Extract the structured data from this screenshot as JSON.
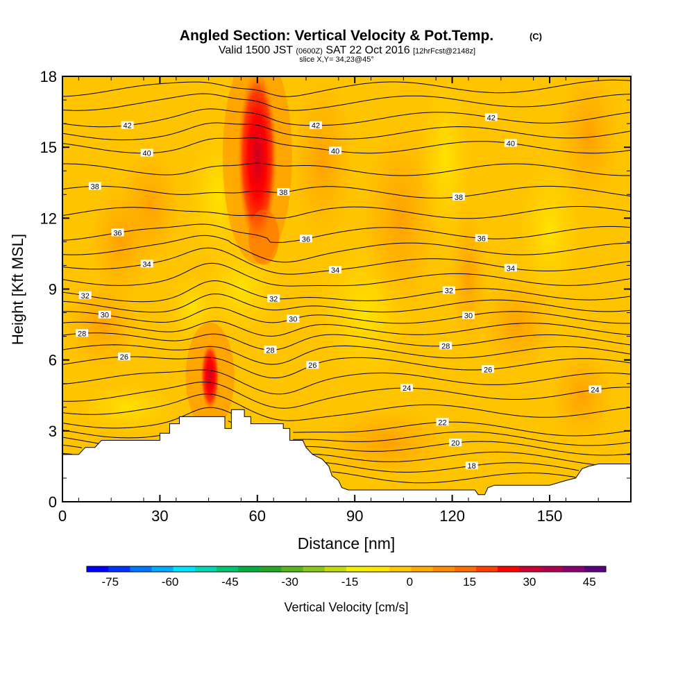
{
  "chart_data": {
    "type": "heatmap",
    "title": "Angled Section: Vertical Velocity & Pot.Temp.",
    "title_unit": "(C)",
    "subtitle_parts": [
      "Valid 1500 JST",
      "(0600Z)",
      "SAT 22 Oct 2016",
      "[12hrFcst@2148z]"
    ],
    "slice_label": "slice X,Y= 34,23@45°",
    "xlabel": "Distance [nm]",
    "ylabel": "Height [Kft MSL]",
    "xlim": [
      0,
      175
    ],
    "ylim": [
      0,
      18
    ],
    "x_ticks": [
      "0",
      "30",
      "60",
      "90",
      "120",
      "150"
    ],
    "y_ticks": [
      "0",
      "3",
      "6",
      "9",
      "12",
      "15",
      "18"
    ],
    "colorbar_label": "Vertical Velocity [cm/s]",
    "colorbar_ticks": [
      "-75",
      "-60",
      "-45",
      "-30",
      "-15",
      "0",
      "15",
      "30",
      "45"
    ],
    "colorbar_range": [
      -80,
      50
    ],
    "colorbar_colors": [
      "#0000ff",
      "#0033ff",
      "#0077ff",
      "#00aaff",
      "#00e5ff",
      "#00d9b0",
      "#00c46e",
      "#00b040",
      "#28a828",
      "#5bb51c",
      "#8cc81a",
      "#c2dc14",
      "#f0f000",
      "#ffe600",
      "#ffc800",
      "#ffaa00",
      "#ff8c00",
      "#ff6e00",
      "#ff4000",
      "#ff0000",
      "#cc0033",
      "#b00050",
      "#8a0070",
      "#5a0080"
    ],
    "terrain": [
      [
        0,
        2
      ],
      [
        5,
        2
      ],
      [
        7,
        2.3
      ],
      [
        10,
        2.3
      ],
      [
        12,
        2.6
      ],
      [
        17,
        2.6
      ],
      [
        20,
        2.6
      ],
      [
        25,
        2.6
      ],
      [
        30,
        2.6
      ],
      [
        30,
        2.9
      ],
      [
        33,
        2.9
      ],
      [
        33,
        3.3
      ],
      [
        36,
        3.3
      ],
      [
        36,
        3.6
      ],
      [
        50,
        3.6
      ],
      [
        50,
        3.1
      ],
      [
        52,
        3.1
      ],
      [
        52,
        3.9
      ],
      [
        56,
        3.9
      ],
      [
        56,
        3.6
      ],
      [
        58,
        3.6
      ],
      [
        58,
        3.3
      ],
      [
        65,
        3.3
      ],
      [
        68,
        3.3
      ],
      [
        68,
        3.1
      ],
      [
        70,
        3.1
      ],
      [
        70,
        2.6
      ],
      [
        74,
        2.6
      ],
      [
        75,
        2.3
      ],
      [
        77,
        2.0
      ],
      [
        80,
        1.8
      ],
      [
        82,
        1.5
      ],
      [
        83,
        1.1
      ],
      [
        85,
        0.9
      ],
      [
        86,
        0.6
      ],
      [
        88,
        0.5
      ],
      [
        92,
        0.5
      ],
      [
        95,
        0.5
      ],
      [
        100,
        0.5
      ],
      [
        110,
        0.5
      ],
      [
        118,
        0.5
      ],
      [
        122,
        0.5
      ],
      [
        127,
        0.5
      ],
      [
        128,
        0.3
      ],
      [
        130,
        0.3
      ],
      [
        131,
        0.6
      ],
      [
        133,
        0.7
      ],
      [
        138,
        0.7
      ],
      [
        143,
        0.7
      ],
      [
        150,
        0.7
      ],
      [
        155,
        0.9
      ],
      [
        158,
        1.0
      ],
      [
        159,
        1.2
      ],
      [
        160,
        1.4
      ],
      [
        162,
        1.5
      ],
      [
        165,
        1.6
      ],
      [
        170,
        1.6
      ],
      [
        175,
        1.6
      ]
    ],
    "theta_contours": [
      {
        "label": "18",
        "y_left": 1.8,
        "y_right": 1.3,
        "label_x": 126
      },
      {
        "label": "20",
        "y_left": 2.6,
        "y_right": 2.2,
        "label_x": 121
      },
      {
        "label": "22",
        "y_left": 3.4,
        "y_right": 3.0,
        "label_x": 117
      },
      {
        "label": "24",
        "y_left": 4.5,
        "y_right": 4.6,
        "label_x": 106
      },
      {
        "label": "26",
        "y_left": 5.9,
        "y_right": 5.8,
        "label_x": 19
      },
      {
        "label": "28",
        "y_left": 6.9,
        "y_right": 6.8,
        "label_x": 6
      },
      {
        "label": "30",
        "y_left": 7.8,
        "y_right": 7.8,
        "label_x": 13
      },
      {
        "label": "32",
        "y_left": 8.7,
        "y_right": 8.8,
        "label_x": 7
      },
      {
        "label": "34",
        "y_left": 10.1,
        "y_right": 10.0,
        "label_x": 26
      },
      {
        "label": "36",
        "y_left": 11.3,
        "y_right": 11.4,
        "label_x": 17
      },
      {
        "label": "38",
        "y_left": 13.1,
        "y_right": 13.1,
        "label_x": 10
      },
      {
        "label": "40",
        "y_left": 15.0,
        "y_right": 15.0,
        "label_x": 26
      },
      {
        "label": "42",
        "y_left": 16.1,
        "y_right": 16.3,
        "label_x": 20
      }
    ],
    "updraft_cores": [
      {
        "x": 60,
        "y": 14.6,
        "peak": 28
      },
      {
        "x": 45,
        "y": 5.3,
        "peak": 25
      }
    ]
  }
}
